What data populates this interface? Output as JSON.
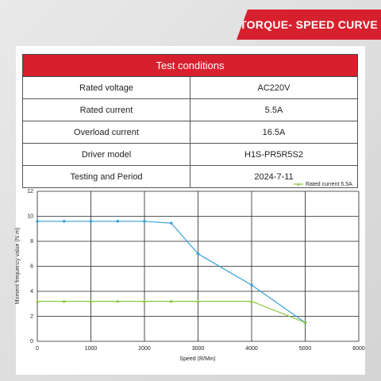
{
  "header": {
    "title": "TORQUE- SPEED CURVE"
  },
  "table": {
    "header": "Test conditions",
    "rows": [
      [
        "Rated voltage",
        "AC220V"
      ],
      [
        "Rated current",
        "5.5A"
      ],
      [
        "Overload current",
        "16.5A"
      ],
      [
        "Driver model",
        "H1S-PR5R5S2"
      ],
      [
        "Testing and Period",
        "2024-7-11"
      ]
    ]
  },
  "chart_data": {
    "type": "line",
    "x_label": "Speed (R/Min)",
    "y_label": "Moment frequency value (N·m)",
    "x": [
      0,
      500,
      1000,
      1500,
      2000,
      2500,
      3000,
      4000,
      5000
    ],
    "series": [
      {
        "color": "#3a9fd6",
        "marker": "circle",
        "values": [
          9.6,
          9.6,
          9.6,
          9.6,
          9.6,
          9.45,
          7,
          4.5,
          1.5
        ]
      },
      {
        "name": "Rated current 5.5A",
        "color": "#8cc63f",
        "marker": "triangle",
        "values": [
          3.2,
          3.2,
          3.2,
          3.2,
          3.2,
          3.2,
          3.2,
          3.2,
          1.5
        ]
      }
    ],
    "xlim": [
      0,
      6000
    ],
    "xticks": [
      0,
      1000,
      2000,
      3000,
      4000,
      5000,
      6000
    ],
    "ylim": [
      0,
      12
    ],
    "yticks": [
      0,
      2,
      4,
      6,
      8,
      10,
      12
    ],
    "grid": true,
    "legend": "top-right"
  }
}
